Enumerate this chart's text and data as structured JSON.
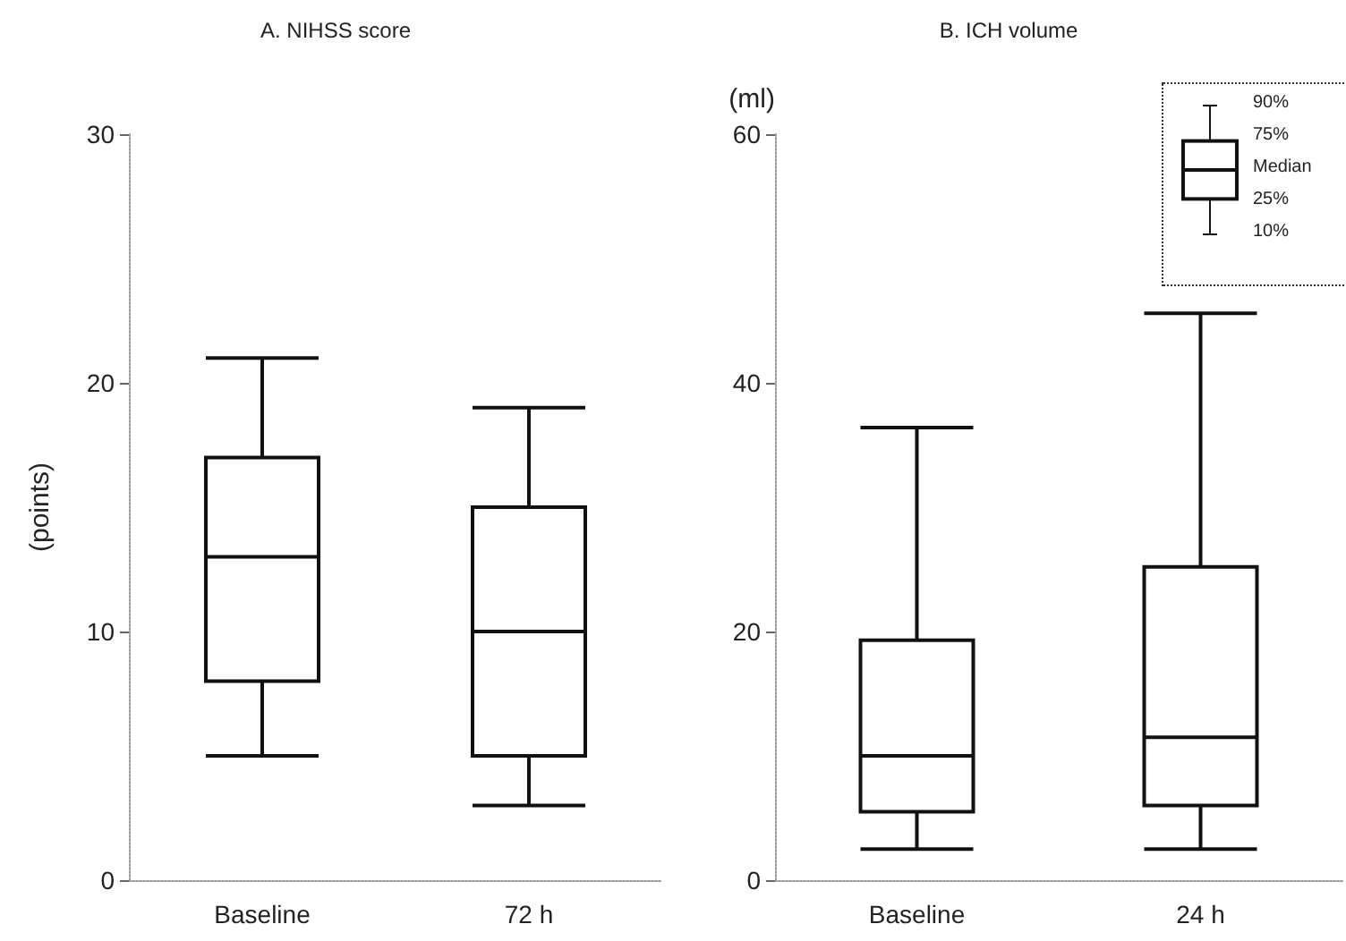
{
  "chart_data": [
    {
      "type": "box",
      "title": "A. NIHSS score",
      "ylabel": "(points)",
      "categories": [
        "Baseline",
        "72 h"
      ],
      "boxes": [
        {
          "low": 5,
          "q1": 8,
          "median": 13,
          "q3": 17,
          "high": 21
        },
        {
          "low": 3,
          "q1": 5,
          "median": 10,
          "q3": 15,
          "high": 19
        }
      ],
      "ylim": [
        0,
        30
      ],
      "yticks": [
        0,
        10,
        20,
        30
      ]
    },
    {
      "type": "box",
      "title": "B. ICH volume",
      "ylabel": "(ml)",
      "categories": [
        "Baseline",
        "24 h"
      ],
      "boxes": [
        {
          "low": 2.5,
          "q1": 5.5,
          "median": 10,
          "q3": 19.3,
          "high": 36.4
        },
        {
          "low": 2.5,
          "q1": 6,
          "median": 11.5,
          "q3": 25.2,
          "high": 45.6
        }
      ],
      "ylim": [
        0,
        60
      ],
      "yticks": [
        0,
        20,
        40,
        60
      ],
      "annotations": [
        "90%",
        "75%",
        "Median",
        "25%",
        "10%"
      ]
    }
  ]
}
